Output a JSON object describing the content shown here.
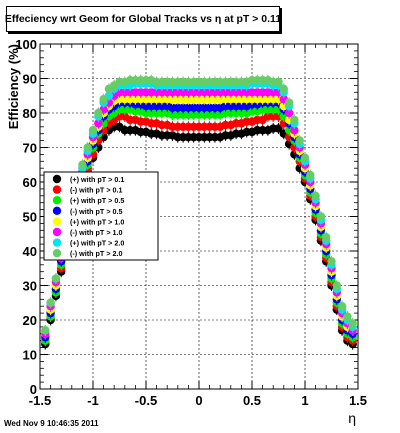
{
  "chart_data": {
    "type": "scatter",
    "title": "Effeciency wrt Geom for Global Tracks vs   η at pT > 0.11",
    "xlabel": "η",
    "ylabel": "Efficiency (%)",
    "xlim": [
      -1.5,
      1.5
    ],
    "ylim": [
      0,
      100
    ],
    "x_ticks": [
      "-1.5",
      "-1",
      "-0.5",
      "0",
      "0.5",
      "1",
      "1.5"
    ],
    "y_ticks": [
      "0",
      "10",
      "20",
      "30",
      "40",
      "50",
      "60",
      "70",
      "80",
      "90",
      "100"
    ],
    "grid": true,
    "legend_position": "left-middle",
    "x": [
      -1.45,
      -1.4,
      -1.35,
      -1.3,
      -1.25,
      -1.2,
      -1.15,
      -1.1,
      -1.05,
      -1.0,
      -0.95,
      -0.9,
      -0.85,
      -0.8,
      -0.75,
      -0.7,
      -0.65,
      -0.6,
      -0.55,
      -0.5,
      -0.45,
      -0.4,
      -0.35,
      -0.3,
      -0.25,
      -0.2,
      -0.15,
      -0.1,
      -0.05,
      0.0,
      0.05,
      0.1,
      0.15,
      0.2,
      0.25,
      0.3,
      0.35,
      0.4,
      0.45,
      0.5,
      0.55,
      0.6,
      0.65,
      0.7,
      0.75,
      0.8,
      0.85,
      0.9,
      0.95,
      1.0,
      1.05,
      1.1,
      1.15,
      1.2,
      1.25,
      1.3,
      1.35,
      1.4,
      1.45
    ],
    "series": [
      {
        "name": "(+) with pT > 0.1",
        "color": "#000000",
        "values": [
          13,
          20,
          27,
          34,
          40,
          46,
          52,
          58,
          63,
          67,
          70,
          73,
          75,
          76,
          76,
          75,
          75,
          75,
          74.5,
          74.5,
          74,
          74,
          73.5,
          73.5,
          73.5,
          73,
          73,
          73,
          73,
          73,
          73,
          73,
          73,
          73,
          73.5,
          73.5,
          74,
          74,
          74.5,
          74.5,
          75,
          75,
          75,
          75.5,
          75.5,
          74,
          71,
          68,
          64,
          60,
          55,
          49,
          43,
          37,
          30,
          23,
          17,
          14,
          13
        ]
      },
      {
        "name": "(-) with pT > 0.1",
        "color": "#ff0000",
        "values": [
          14,
          21,
          28,
          35,
          41,
          47,
          53,
          59,
          64,
          68,
          72,
          75,
          77,
          78,
          79,
          79,
          78,
          78,
          77.5,
          77.5,
          77,
          77,
          76.5,
          76.5,
          76,
          76,
          76,
          76,
          76,
          76,
          76,
          76,
          76,
          76,
          76.5,
          76.5,
          77,
          77,
          77.5,
          77.5,
          78,
          78,
          79,
          79,
          79,
          77,
          73,
          70,
          66,
          61,
          56,
          50,
          44,
          38,
          31,
          24,
          18,
          15,
          14
        ]
      },
      {
        "name": "(+) with pT > 0.5",
        "color": "#00ee00",
        "values": [
          14,
          21,
          28,
          36,
          42,
          48,
          54,
          60,
          65,
          70,
          74,
          77,
          79,
          80,
          81,
          81,
          81,
          80.5,
          80.5,
          80,
          80,
          80,
          80,
          80,
          79.5,
          79.5,
          79.5,
          79.5,
          79.5,
          79.5,
          79.5,
          79.5,
          79.5,
          79.5,
          80,
          80,
          80,
          80,
          80,
          80.5,
          80.5,
          81,
          81,
          81,
          81,
          79,
          75,
          72,
          67,
          62,
          57,
          51,
          45,
          39,
          32,
          25,
          19,
          16,
          15
        ]
      },
      {
        "name": "(-) with pT > 0.5",
        "color": "#0000ff",
        "values": [
          15,
          22,
          29,
          37,
          43,
          49,
          55,
          61,
          66,
          71,
          75,
          79,
          81,
          82,
          83,
          83,
          83,
          82.5,
          82.5,
          82,
          82,
          82,
          82,
          82,
          81.5,
          81.5,
          81.5,
          81.5,
          81.5,
          81.5,
          81.5,
          81.5,
          81.5,
          81.5,
          82,
          82,
          82,
          82,
          82,
          82.5,
          82.5,
          83,
          83,
          83,
          83,
          81,
          77,
          73,
          68,
          63,
          58,
          52,
          46,
          40,
          33,
          26,
          20,
          17,
          16
        ]
      },
      {
        "name": "(+) with pT > 1.0",
        "color": "#ffff00",
        "values": [
          16,
          23,
          30,
          38,
          44,
          50,
          56,
          62,
          67,
          72,
          76,
          80,
          82,
          83.5,
          84,
          84,
          84,
          84,
          84,
          84,
          84,
          84,
          84,
          84,
          84,
          84,
          84,
          84,
          84,
          84,
          84,
          84,
          84,
          84,
          84,
          84,
          84,
          84,
          84,
          84,
          84,
          84,
          84,
          84,
          84,
          82,
          78,
          74,
          69,
          64,
          59,
          53,
          47,
          41,
          34,
          27,
          21,
          18,
          17
        ]
      },
      {
        "name": "(-) with pT > 1.0",
        "color": "#ff00ff",
        "values": [
          16,
          24,
          31,
          38,
          45,
          51,
          57,
          63,
          68,
          73,
          77,
          81,
          83,
          85,
          86,
          86,
          86,
          86,
          86,
          86,
          86,
          86,
          86,
          86,
          86,
          86,
          86,
          86,
          86,
          86,
          86,
          86,
          86,
          86,
          86,
          86,
          86,
          86,
          86,
          86,
          86,
          86,
          86,
          86,
          86,
          84,
          80,
          75,
          70,
          65,
          60,
          54,
          48,
          42,
          35,
          28,
          22,
          19,
          17
        ]
      },
      {
        "name": "(+) with pT > 2.0",
        "color": "#00e5ee",
        "values": [
          17,
          25,
          32,
          39,
          46,
          52,
          58,
          64,
          69,
          74,
          79,
          83,
          85,
          87,
          88,
          88,
          88,
          88.5,
          88.5,
          88.5,
          88.5,
          88,
          88,
          88,
          88,
          88,
          88,
          88,
          88,
          88,
          88,
          88,
          88,
          88,
          88,
          88,
          88,
          88,
          88,
          88.5,
          88.5,
          88.5,
          88.5,
          88,
          88,
          86,
          82,
          77,
          71,
          66,
          61,
          55,
          49,
          43,
          36,
          29,
          23,
          20,
          18
        ]
      },
      {
        "name": "(-) with pT > 2.0",
        "color": "#66cc66",
        "values": [
          17,
          25,
          32,
          40,
          47,
          53,
          59,
          65,
          70,
          75,
          80,
          84,
          87,
          88,
          89,
          89,
          89.5,
          89.5,
          89.5,
          89.5,
          89.5,
          89,
          89,
          89,
          89,
          89,
          89,
          89,
          89,
          89,
          89,
          89,
          89,
          89,
          89,
          89,
          89,
          89,
          89,
          89.5,
          89.5,
          89.5,
          89.5,
          89,
          89,
          87,
          83,
          78,
          72,
          67,
          62,
          56,
          50,
          44,
          37,
          30,
          24,
          21,
          19
        ]
      }
    ]
  },
  "footer": "Wed Nov  9 10:46:35 2011"
}
